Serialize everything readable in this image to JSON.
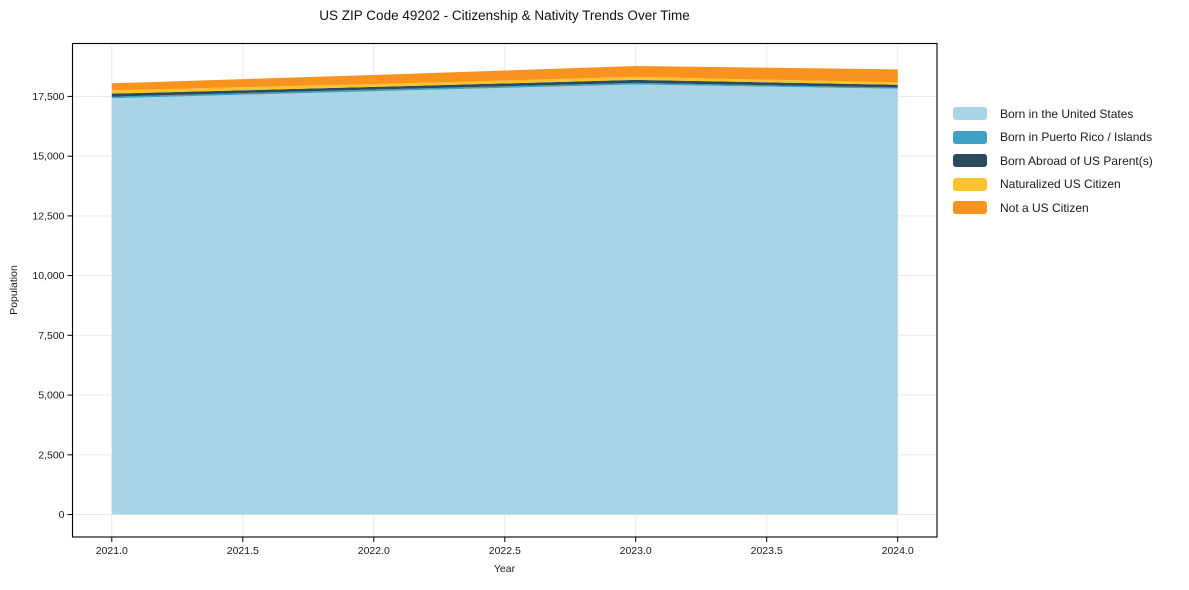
{
  "page_title": "US ZIP Code 49202 - Citizenship & Nativity Trends Over Time",
  "chart_data": {
    "type": "area",
    "stacked": true,
    "title": "US ZIP Code 49202 - Citizenship & Nativity Trends Over Time",
    "xlabel": "Year",
    "ylabel": "Population",
    "x": [
      2021,
      2022,
      2023,
      2024
    ],
    "series": [
      {
        "name": "Born in the United States",
        "color": "#a8d4e8",
        "values": [
          17420,
          17720,
          18000,
          17820
        ]
      },
      {
        "name": "Born in Puerto Rico / Islands",
        "color": "#3fa2c2",
        "values": [
          70,
          70,
          65,
          55
        ]
      },
      {
        "name": "Born Abroad of US Parent(s)",
        "color": "#2a4a5e",
        "values": [
          130,
          110,
          125,
          110
        ]
      },
      {
        "name": "Naturalized US Citizen",
        "color": "#fcc32d",
        "values": [
          140,
          115,
          125,
          100
        ]
      },
      {
        "name": "Not a US Citizen",
        "color": "#f7931e",
        "values": [
          290,
          380,
          460,
          545
        ]
      }
    ],
    "stack_totals": [
      18050,
      18395,
      18775,
      18630
    ],
    "xticks": {
      "values": [
        2021.0,
        2021.5,
        2022.0,
        2022.5,
        2023.0,
        2023.5,
        2024.0
      ],
      "labels": [
        "2021.0",
        "2021.5",
        "2022.0",
        "2022.5",
        "2023.0",
        "2023.5",
        "2024.0"
      ]
    },
    "yticks": {
      "values": [
        0,
        2500,
        5000,
        7500,
        10000,
        12500,
        15000,
        17500
      ],
      "labels": [
        "0",
        "2,500",
        "5,000",
        "7,500",
        "10,000",
        "12,500",
        "15,000",
        "17,500"
      ]
    },
    "xlim": [
      2020.85,
      2024.15
    ],
    "ylim": [
      -940,
      19715
    ],
    "grid": true,
    "legend_position": "right-of-plot",
    "colors": {
      "grid": "#e8e8e8",
      "spine": "#000000",
      "background": "#ffffff",
      "text": "#1a1a1a"
    }
  }
}
